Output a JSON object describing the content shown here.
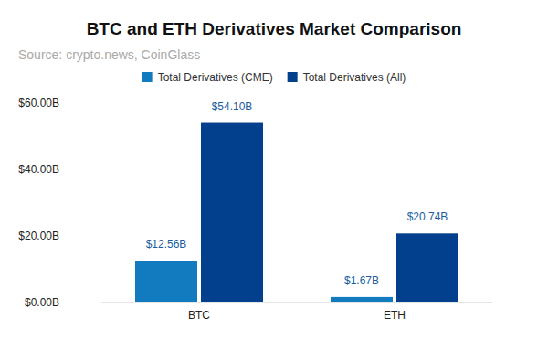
{
  "chart_data": {
    "type": "bar",
    "title": "BTC and ETH Derivatives Market Comparison",
    "subtitle": "Source: crypto.news, CoinGlass",
    "categories": [
      "BTC",
      "ETH"
    ],
    "series": [
      {
        "name": "Total Derivatives (CME)",
        "color": "#127bbf",
        "values": [
          12.56,
          1.67
        ],
        "value_labels": [
          "$12.56B",
          "$1.67B"
        ]
      },
      {
        "name": "Total Derivatives (All)",
        "color": "#023f8c",
        "values": [
          54.1,
          20.74
        ],
        "value_labels": [
          "$54.10B",
          "$20.74B"
        ]
      }
    ],
    "ylim": [
      0,
      60
    ],
    "yticks": [
      {
        "value": 0,
        "label": "$0.00B"
      },
      {
        "value": 20,
        "label": "$20.00B"
      },
      {
        "value": 40,
        "label": "$40.00B"
      },
      {
        "value": 60,
        "label": "$60.00B"
      }
    ],
    "grid": false,
    "legend": "top",
    "data_labels": true
  }
}
